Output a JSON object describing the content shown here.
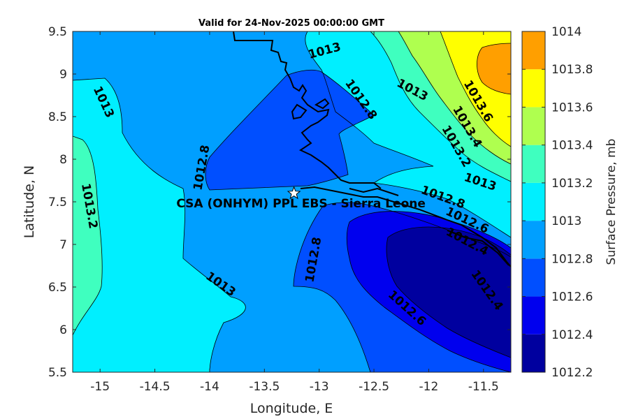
{
  "chart_data": {
    "type": "heatmap",
    "subtype": "filled-contour",
    "title": "Valid for 24-Nov-2025 00:00:00 GMT",
    "xlabel": "Longitude, E",
    "ylabel": "Latitude, N",
    "xlim": [
      -15.25,
      -11.25
    ],
    "ylim": [
      5.5,
      9.5
    ],
    "xticks": [
      -15,
      -14.5,
      -14,
      -13.5,
      -13,
      -12.5,
      -12,
      -11.5
    ],
    "yticks": [
      5.5,
      6,
      6.5,
      7,
      7.5,
      8,
      8.5,
      9,
      9.5
    ],
    "colorbar": {
      "label": "Surface Pressure, mb",
      "levels": [
        1012.2,
        1012.4,
        1012.6,
        1012.8,
        1013,
        1013.2,
        1013.4,
        1013.6,
        1013.8,
        1014
      ],
      "tick_labels": [
        "1012.2",
        "1012.4",
        "1012.6",
        "1012.8",
        "1013",
        "1013.2",
        "1013.4",
        "1013.6",
        "1013.8",
        "1014"
      ],
      "colors": [
        "#00009f",
        "#0000ee",
        "#004fff",
        "#009fff",
        "#00efff",
        "#3fffbf",
        "#afff4f",
        "#ffff00",
        "#ff9f00",
        "#ff4f00"
      ]
    },
    "site": {
      "name": "CSA (ONHYM) PPL EBS  - Sierra Leone",
      "lon": -13.23,
      "lat": 7.6
    },
    "contour_labels": [
      {
        "text": "1013",
        "lon": -12.95,
        "lat": 9.27,
        "angle": -15
      },
      {
        "text": "1012.8",
        "lon": -12.62,
        "lat": 8.7,
        "angle": 55
      },
      {
        "text": "1013",
        "lon": -12.15,
        "lat": 8.81,
        "angle": 28
      },
      {
        "text": "1013",
        "lon": -14.97,
        "lat": 8.67,
        "angle": 65
      },
      {
        "text": "1013.6",
        "lon": -11.55,
        "lat": 8.68,
        "angle": 60
      },
      {
        "text": "1013.4",
        "lon": -11.65,
        "lat": 8.38,
        "angle": 60
      },
      {
        "text": "1013.2",
        "lon": -11.75,
        "lat": 8.15,
        "angle": 60
      },
      {
        "text": "1012.8",
        "lon": -14.07,
        "lat": 7.9,
        "angle": -80
      },
      {
        "text": "1013.2",
        "lon": -15.1,
        "lat": 7.45,
        "angle": 80
      },
      {
        "text": "1013",
        "lon": -11.53,
        "lat": 7.73,
        "angle": 18
      },
      {
        "text": "1012.8",
        "lon": -11.87,
        "lat": 7.55,
        "angle": 20
      },
      {
        "text": "1012.6",
        "lon": -11.65,
        "lat": 7.28,
        "angle": 25
      },
      {
        "text": "1012.4",
        "lon": -11.65,
        "lat": 7.03,
        "angle": 28
      },
      {
        "text": "1012.8",
        "lon": -13.05,
        "lat": 6.82,
        "angle": -80
      },
      {
        "text": "1013",
        "lon": -13.9,
        "lat": 6.53,
        "angle": 35
      },
      {
        "text": "1012.4",
        "lon": -11.47,
        "lat": 6.46,
        "angle": 55
      },
      {
        "text": "1012.6",
        "lon": -12.2,
        "lat": 6.25,
        "angle": 42
      }
    ]
  }
}
